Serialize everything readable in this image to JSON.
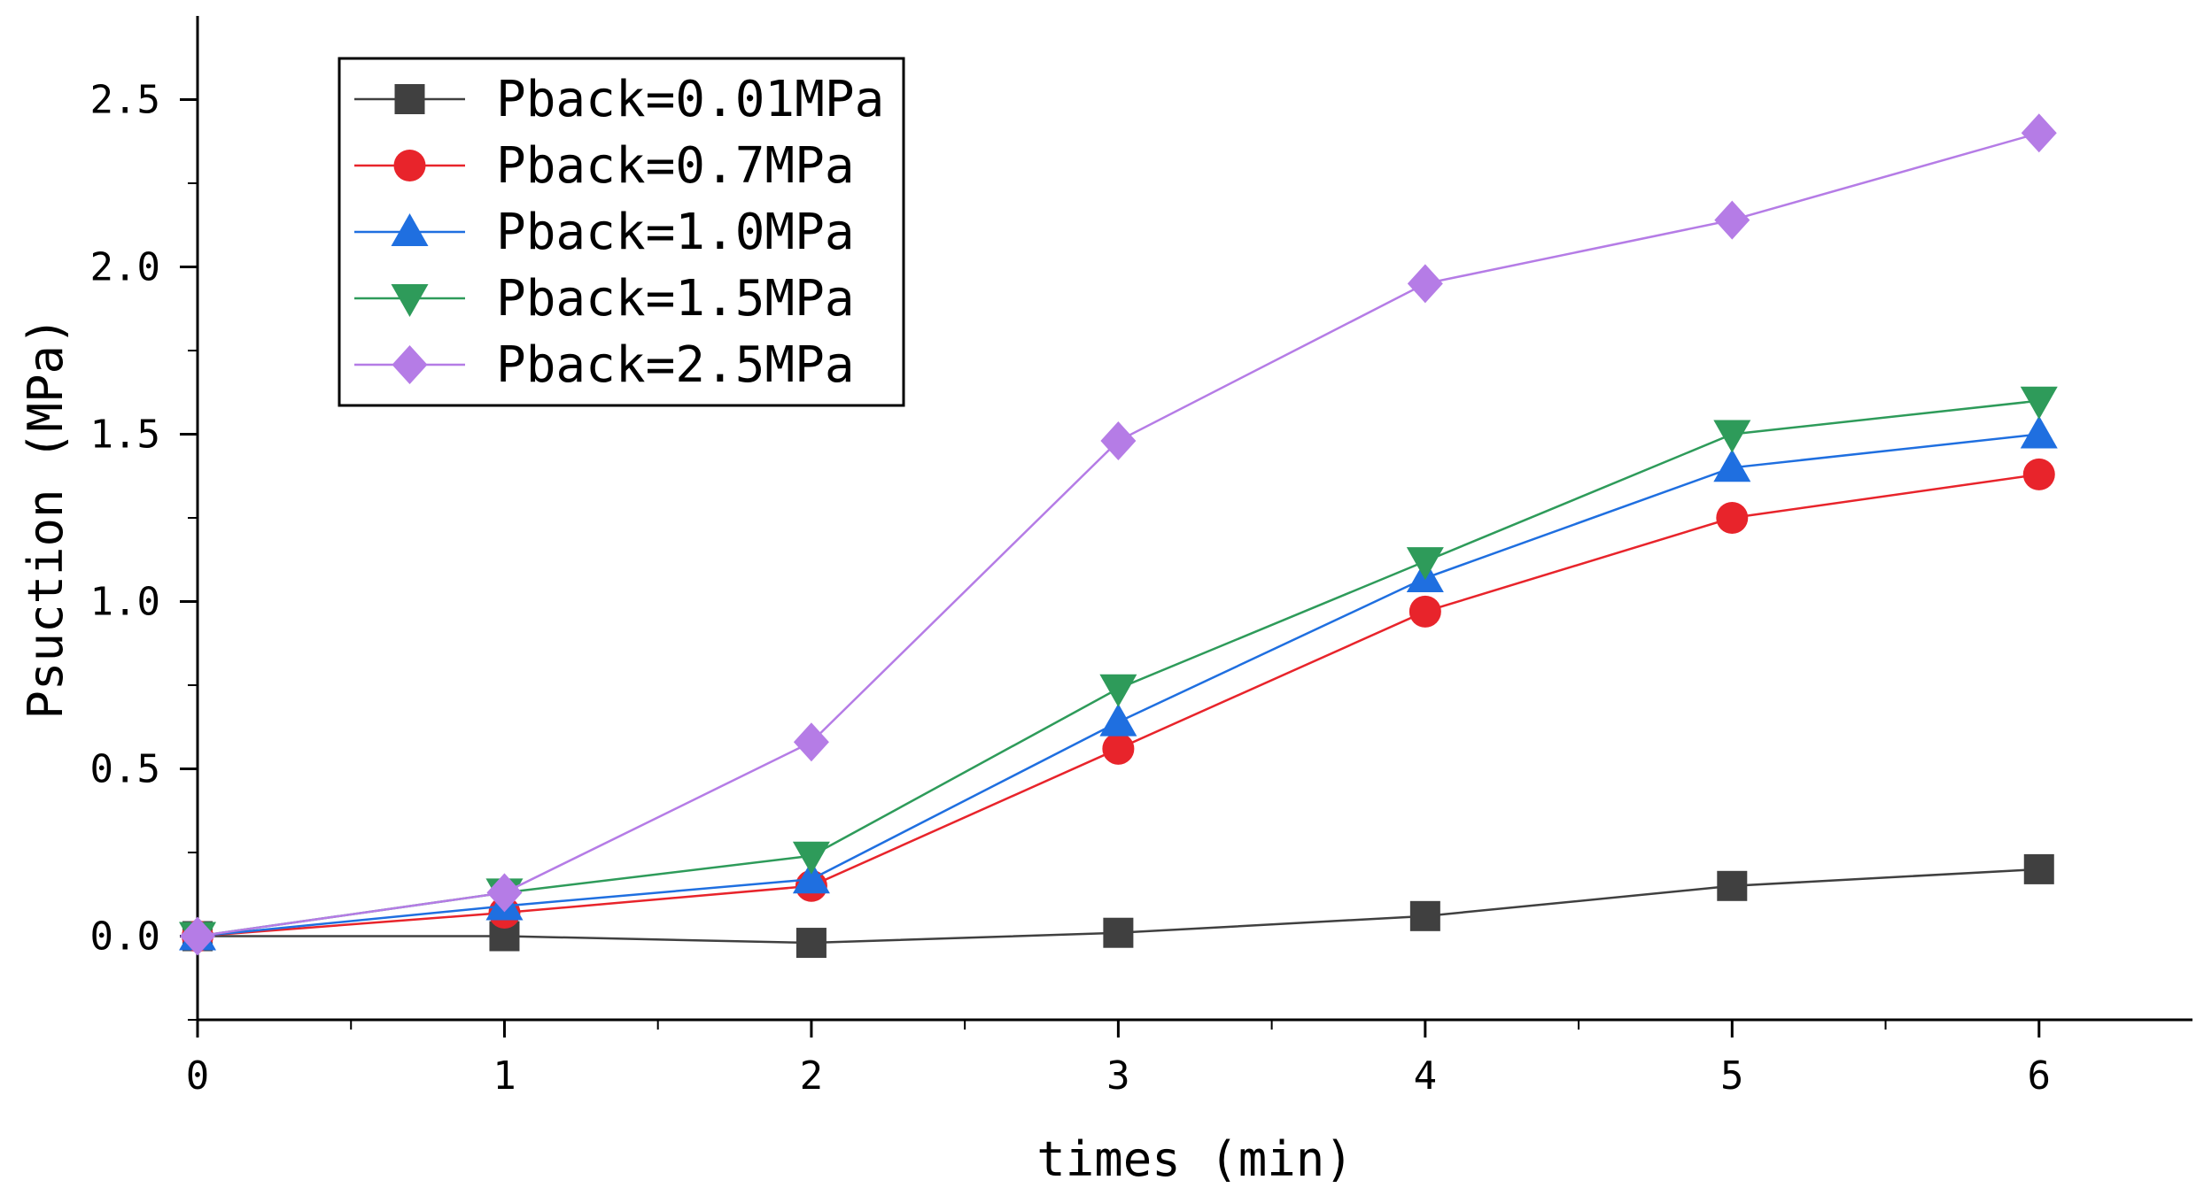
{
  "chart_data": {
    "type": "line",
    "title": "",
    "xlabel": "times (min)",
    "ylabel": "Psuction (MPa)",
    "xlim": [
      0,
      6.5
    ],
    "ylim": [
      -0.25,
      2.75
    ],
    "xticks": [
      0,
      1,
      2,
      3,
      4,
      5,
      6
    ],
    "xtick_labels": [
      "0",
      "1",
      "2",
      "3",
      "4",
      "5",
      "6"
    ],
    "yticks": [
      0.0,
      0.5,
      1.0,
      1.5,
      2.0,
      2.5
    ],
    "ytick_labels": [
      "0.0",
      "0.5",
      "1.0",
      "1.5",
      "2.0",
      "2.5"
    ],
    "grid": false,
    "legend_position": "top-left",
    "x": [
      0,
      1,
      2,
      3,
      4,
      5,
      6
    ],
    "series": [
      {
        "name": "Pback=0.01MPa",
        "color": "#404040",
        "marker": "square",
        "values": [
          0.0,
          0.0,
          -0.02,
          0.01,
          0.06,
          0.15,
          0.2
        ]
      },
      {
        "name": "Pback=0.7MPa",
        "color": "#e8242b",
        "marker": "circle",
        "values": [
          0.0,
          0.07,
          0.15,
          0.56,
          0.97,
          1.25,
          1.38
        ]
      },
      {
        "name": "Pback=1.0MPa",
        "color": "#1f6fe0",
        "marker": "triangle-up",
        "values": [
          0.0,
          0.09,
          0.17,
          0.64,
          1.07,
          1.4,
          1.5
        ]
      },
      {
        "name": "Pback=1.5MPa",
        "color": "#2e9b5a",
        "marker": "triangle-down",
        "values": [
          0.0,
          0.13,
          0.24,
          0.74,
          1.12,
          1.5,
          1.6
        ]
      },
      {
        "name": "Pback=2.5MPa",
        "color": "#b57ce6",
        "marker": "diamond",
        "values": [
          0.0,
          0.13,
          0.58,
          1.48,
          1.95,
          2.14,
          2.4
        ]
      }
    ]
  }
}
